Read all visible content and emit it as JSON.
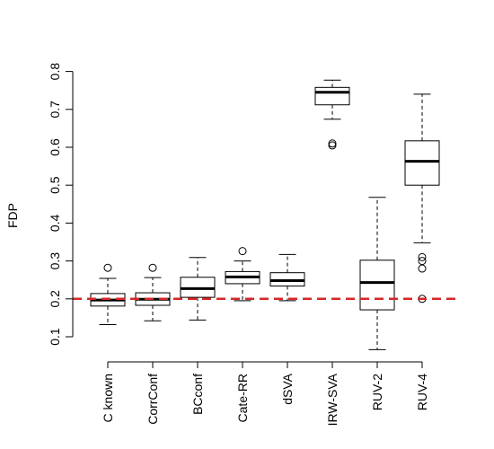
{
  "chart_data": {
    "type": "boxplot",
    "title": "",
    "xlabel": "",
    "ylabel": "FDP",
    "ylim": [
      0.1,
      0.8
    ],
    "yticks": [
      0.1,
      0.2,
      0.3,
      0.4,
      0.5,
      0.6,
      0.7,
      0.8
    ],
    "grid": false,
    "reference_line": {
      "y": 0.2,
      "color": "#d62728",
      "style": "dashed"
    },
    "categories": [
      "C known",
      "CorrConf",
      "BCconf",
      "Cate-RR",
      "dSVA",
      "IRW-SVA",
      "RUV-2",
      "RUV-4"
    ],
    "boxes": [
      {
        "name": "C known",
        "whisker_low": 0.132,
        "q1": 0.181,
        "median": 0.197,
        "q3": 0.214,
        "whisker_high": 0.254,
        "outliers": [
          0.282
        ]
      },
      {
        "name": "CorrConf",
        "whisker_low": 0.142,
        "q1": 0.183,
        "median": 0.199,
        "q3": 0.216,
        "whisker_high": 0.256,
        "outliers": [
          0.282
        ]
      },
      {
        "name": "BCconf",
        "whisker_low": 0.144,
        "q1": 0.204,
        "median": 0.227,
        "q3": 0.257,
        "whisker_high": 0.309,
        "outliers": []
      },
      {
        "name": "Cate-RR",
        "whisker_low": 0.195,
        "q1": 0.24,
        "median": 0.258,
        "q3": 0.272,
        "whisker_high": 0.3,
        "outliers": [
          0.326
        ]
      },
      {
        "name": "dSVA",
        "whisker_low": 0.195,
        "q1": 0.234,
        "median": 0.248,
        "q3": 0.269,
        "whisker_high": 0.317,
        "outliers": []
      },
      {
        "name": "IRW-SVA",
        "whisker_low": 0.674,
        "q1": 0.712,
        "median": 0.745,
        "q3": 0.758,
        "whisker_high": 0.777,
        "outliers": [
          0.61,
          0.605
        ]
      },
      {
        "name": "RUV-2",
        "whisker_low": 0.066,
        "q1": 0.171,
        "median": 0.243,
        "q3": 0.302,
        "whisker_high": 0.468,
        "outliers": []
      },
      {
        "name": "RUV-4",
        "whisker_low": 0.348,
        "q1": 0.5,
        "median": 0.563,
        "q3": 0.617,
        "whisker_high": 0.74,
        "outliers": [
          0.31,
          0.3,
          0.28,
          0.2
        ]
      }
    ]
  }
}
